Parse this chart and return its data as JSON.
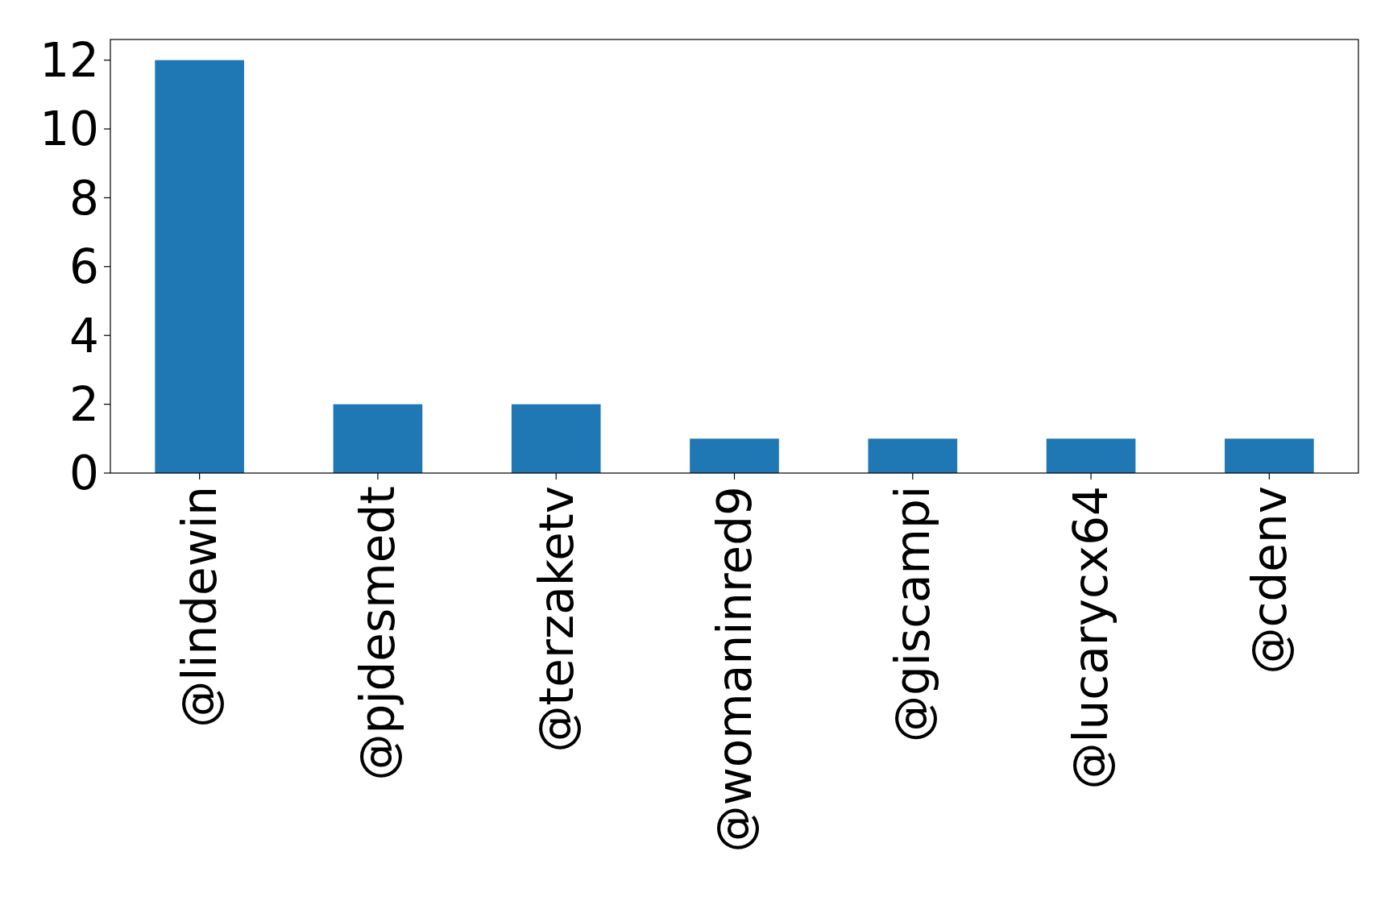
{
  "chart_data": {
    "type": "bar",
    "categories": [
      "@lindewin",
      "@pjdesmedt",
      "@terzaketv",
      "@womaninred9",
      "@giscampi",
      "@lucarycx64",
      "@cdenv"
    ],
    "values": [
      12,
      2,
      2,
      1,
      1,
      1,
      1
    ],
    "color": "#1f77b4",
    "ylim": [
      0,
      12.6
    ],
    "yticks": [
      0,
      2,
      4,
      6,
      8,
      10,
      12
    ],
    "grid": false
  }
}
